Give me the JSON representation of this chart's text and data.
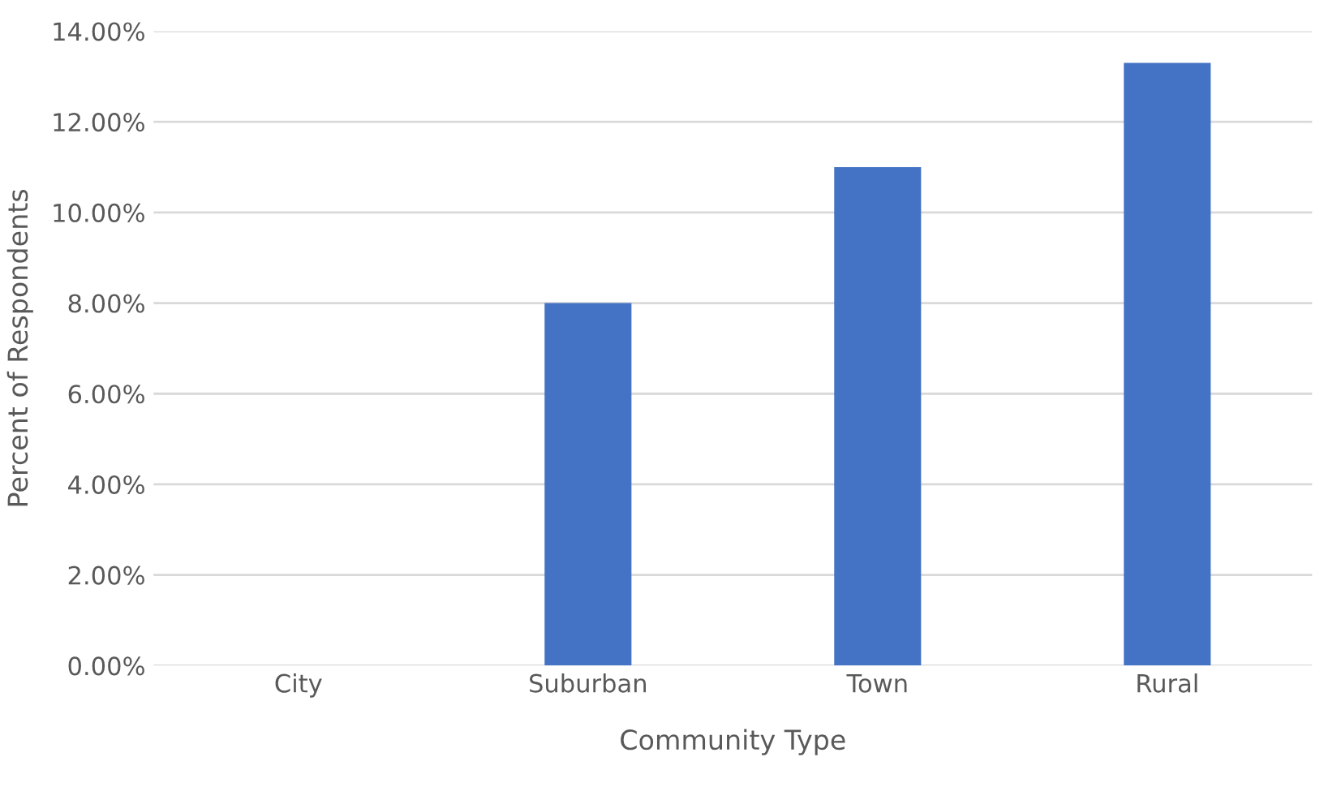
{
  "chart_data": {
    "type": "bar",
    "xlabel": "Community Type",
    "ylabel": "Percent of Respondents",
    "categories": [
      "City",
      "Suburban",
      "Town",
      "Rural"
    ],
    "values": [
      0,
      8.0,
      11.0,
      13.3
    ],
    "color": "#4472c4",
    "ylim": [
      0,
      14
    ],
    "yticks": [
      {
        "value": 0,
        "label": "0.00%"
      },
      {
        "value": 2,
        "label": "2.00%"
      },
      {
        "value": 4,
        "label": "4.00%"
      },
      {
        "value": 6,
        "label": "6.00%"
      },
      {
        "value": 8,
        "label": "8.00%"
      },
      {
        "value": 10,
        "label": "10.00%"
      },
      {
        "value": 12,
        "label": "12.00%"
      },
      {
        "value": 14,
        "label": "14.00%"
      }
    ],
    "grid": "y",
    "legend": false
  }
}
